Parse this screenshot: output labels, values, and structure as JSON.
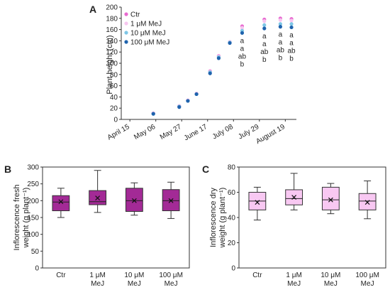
{
  "panels": {
    "a": {
      "letter": "A"
    },
    "b": {
      "letter": "B"
    },
    "c": {
      "letter": "C"
    }
  },
  "colors": {
    "ctr": "#e86ad0",
    "mej1": "#f7c6ef",
    "mej10": "#7ec6e6",
    "mej100": "#1f63ad",
    "box_b": "#a32a96",
    "box_c": "#f8c8f2"
  },
  "chart_data": [
    {
      "type": "scatter",
      "panel": "A",
      "xlabel": "",
      "ylabel": "Plant height (cm)",
      "ylim": [
        0,
        200
      ],
      "yticks": [
        "0",
        "20",
        "40",
        "60",
        "80",
        "100",
        "120",
        "140",
        "160",
        "180",
        "200"
      ],
      "xlim": [
        "2019-04-08",
        "2019-08-28"
      ],
      "xtick_dates": [
        "2019-04-15",
        "2019-05-06",
        "2019-05-27",
        "2019-06-17",
        "2019-07-08",
        "2019-07-29",
        "2019-08-19"
      ],
      "xtick_labels": [
        "April 15",
        "May 06",
        "May 27",
        "June 17",
        "July 08",
        "July 29",
        "August 19"
      ],
      "legend": {
        "position": "top-left",
        "entries": [
          "Ctr",
          "1 μM MeJ",
          "10 μM MeJ",
          "100 μM MeJ"
        ]
      },
      "x": [
        "2019-05-04",
        "2019-05-25",
        "2019-06-01",
        "2019-06-08",
        "2019-06-19",
        "2019-06-26",
        "2019-07-05",
        "2019-07-15",
        "2019-08-02",
        "2019-08-15",
        "2019-08-24"
      ],
      "series": [
        {
          "name": "Ctr",
          "values": [
            11,
            24,
            34,
            46,
            86,
            113,
            138,
            166,
            178,
            180,
            179
          ]
        },
        {
          "name": "1 μM MeJ",
          "values": [
            11,
            24,
            34,
            46,
            85,
            112,
            138,
            163,
            175,
            177,
            176
          ]
        },
        {
          "name": "10 μM MeJ",
          "values": [
            10,
            23,
            33,
            45,
            84,
            111,
            137,
            158,
            168,
            170,
            170
          ]
        },
        {
          "name": "100 μM MeJ",
          "values": [
            10,
            22,
            33,
            45,
            82,
            109,
            136,
            154,
            162,
            165,
            164
          ]
        }
      ],
      "significance": [
        {
          "x": "2019-07-15",
          "letters": [
            "a",
            "a",
            "ab",
            "b"
          ]
        },
        {
          "x": "2019-08-02",
          "letters": [
            "a",
            "a",
            "ab",
            "b"
          ]
        },
        {
          "x": "2019-08-15",
          "letters": [
            "a",
            "a",
            "ab",
            "b"
          ]
        },
        {
          "x": "2019-08-24",
          "letters": [
            "a",
            "a",
            "ab",
            "b"
          ]
        }
      ]
    },
    {
      "type": "box",
      "panel": "B",
      "ylabel_lines": [
        "Inflorescence fresh",
        "weight (g plant⁻¹)"
      ],
      "ylim": [
        0,
        300
      ],
      "yticks": [
        "0",
        "50",
        "100",
        "150",
        "200",
        "250",
        "300"
      ],
      "categories": [
        [
          "Ctr"
        ],
        [
          "1 μM",
          "MeJ"
        ],
        [
          "10 μM",
          "MeJ"
        ],
        [
          "100 μM",
          "MeJ"
        ]
      ],
      "boxes": [
        {
          "min": 150,
          "q1": 170,
          "median": 196,
          "q3": 215,
          "max": 237,
          "mean": 197
        },
        {
          "min": 165,
          "q1": 188,
          "median": 197,
          "q3": 230,
          "max": 290,
          "mean": 208
        },
        {
          "min": 157,
          "q1": 168,
          "median": 200,
          "q3": 237,
          "max": 253,
          "mean": 200
        },
        {
          "min": 147,
          "q1": 170,
          "median": 200,
          "q3": 233,
          "max": 255,
          "mean": 200
        }
      ]
    },
    {
      "type": "box",
      "panel": "C",
      "ylabel_lines": [
        "Inflorescence dry",
        "weight (g plant⁻¹)"
      ],
      "ylim": [
        0,
        80
      ],
      "yticks": [
        "0",
        "20",
        "40",
        "60",
        "80"
      ],
      "categories": [
        [
          "Ctr"
        ],
        [
          "1 μM",
          "MeJ"
        ],
        [
          "10 μM",
          "MeJ"
        ],
        [
          "100 μM",
          "MeJ"
        ]
      ],
      "boxes": [
        {
          "min": 38,
          "q1": 46,
          "median": 53,
          "q3": 60,
          "max": 64,
          "mean": 52
        },
        {
          "min": 46,
          "q1": 50,
          "median": 55,
          "q3": 62,
          "max": 75,
          "mean": 56
        },
        {
          "min": 43,
          "q1": 46,
          "median": 54,
          "q3": 64,
          "max": 67,
          "mean": 54
        },
        {
          "min": 39,
          "q1": 46,
          "median": 53,
          "q3": 59,
          "max": 69,
          "mean": 52
        }
      ]
    }
  ]
}
